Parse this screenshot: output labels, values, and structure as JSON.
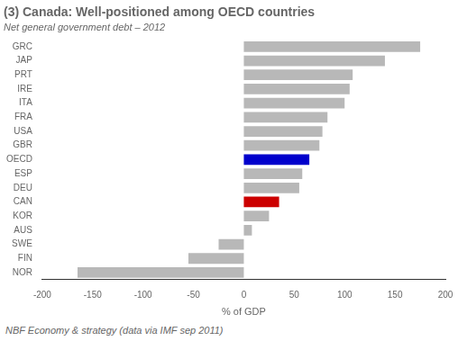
{
  "chart_data": {
    "type": "bar",
    "orientation": "horizontal",
    "title": "(3) Canada: Well-positioned among OECD countries",
    "subtitle": "Net general government debt – 2012",
    "footnote": "NBF Economy & strategy (data via IMF sep 2011)",
    "xlabel": "% of GDP",
    "categories": [
      "GRC",
      "JAP",
      "PRT",
      "IRE",
      "ITA",
      "FRA",
      "USA",
      "GBR",
      "OECD",
      "ESP",
      "DEU",
      "CAN",
      "KOR",
      "AUS",
      "SWE",
      "FIN",
      "NOR"
    ],
    "values": [
      175,
      140,
      108,
      105,
      100,
      83,
      78,
      75,
      65,
      58,
      55,
      35,
      25,
      8,
      -25,
      -55,
      -165
    ],
    "colors": [
      "#b8b8b8",
      "#b8b8b8",
      "#b8b8b8",
      "#b8b8b8",
      "#b8b8b8",
      "#b8b8b8",
      "#b8b8b8",
      "#b8b8b8",
      "#0000cc",
      "#b8b8b8",
      "#b8b8b8",
      "#cc0000",
      "#b8b8b8",
      "#b8b8b8",
      "#b8b8b8",
      "#b8b8b8",
      "#b8b8b8"
    ],
    "xlim": [
      -200,
      200
    ],
    "xticks": [
      -200,
      -150,
      -100,
      -50,
      0,
      50,
      100,
      150,
      200
    ],
    "grid": false
  }
}
